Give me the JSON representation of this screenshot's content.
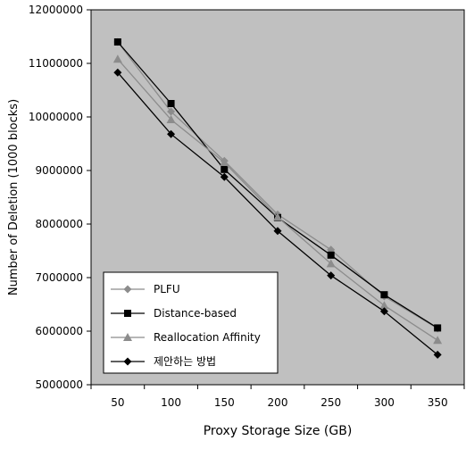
{
  "chart_data": {
    "type": "line",
    "xlabel": "Proxy Storage Size (GB)",
    "ylabel": "Number of Deletion (1000 blocks)",
    "x": [
      50,
      100,
      150,
      200,
      250,
      300,
      350
    ],
    "x_tick_labels": [
      "50",
      "100",
      "150",
      "200",
      "250",
      "300",
      "350"
    ],
    "ylim": [
      5000000,
      12000000
    ],
    "y_ticks": [
      5000000,
      6000000,
      7000000,
      8000000,
      9000000,
      10000000,
      11000000,
      12000000
    ],
    "y_tick_labels": [
      "5000000",
      "6000000",
      "7000000",
      "8000000",
      "9000000",
      "10000000",
      "11000000",
      "12000000"
    ],
    "grid": false,
    "plot_background": "#c0c0c0",
    "legend_position": "bottom-left",
    "series": [
      {
        "name": "PLFU",
        "color": "#8c8c8c",
        "marker": "diamond",
        "values": [
          11400000,
          10100000,
          9180000,
          8180000,
          7520000,
          6650000,
          6050000
        ]
      },
      {
        "name": "Distance-based",
        "color": "#000000",
        "marker": "square",
        "values": [
          11400000,
          10250000,
          9020000,
          8120000,
          7420000,
          6680000,
          6060000
        ]
      },
      {
        "name": "Reallocation Affinity",
        "color": "#8c8c8c",
        "marker": "triangle",
        "values": [
          11080000,
          9950000,
          9150000,
          8130000,
          7260000,
          6480000,
          5830000
        ]
      },
      {
        "name": "제안하는 방법",
        "color": "#000000",
        "marker": "diamond",
        "values": [
          10830000,
          9680000,
          8880000,
          7870000,
          7040000,
          6370000,
          5560000
        ]
      }
    ]
  }
}
